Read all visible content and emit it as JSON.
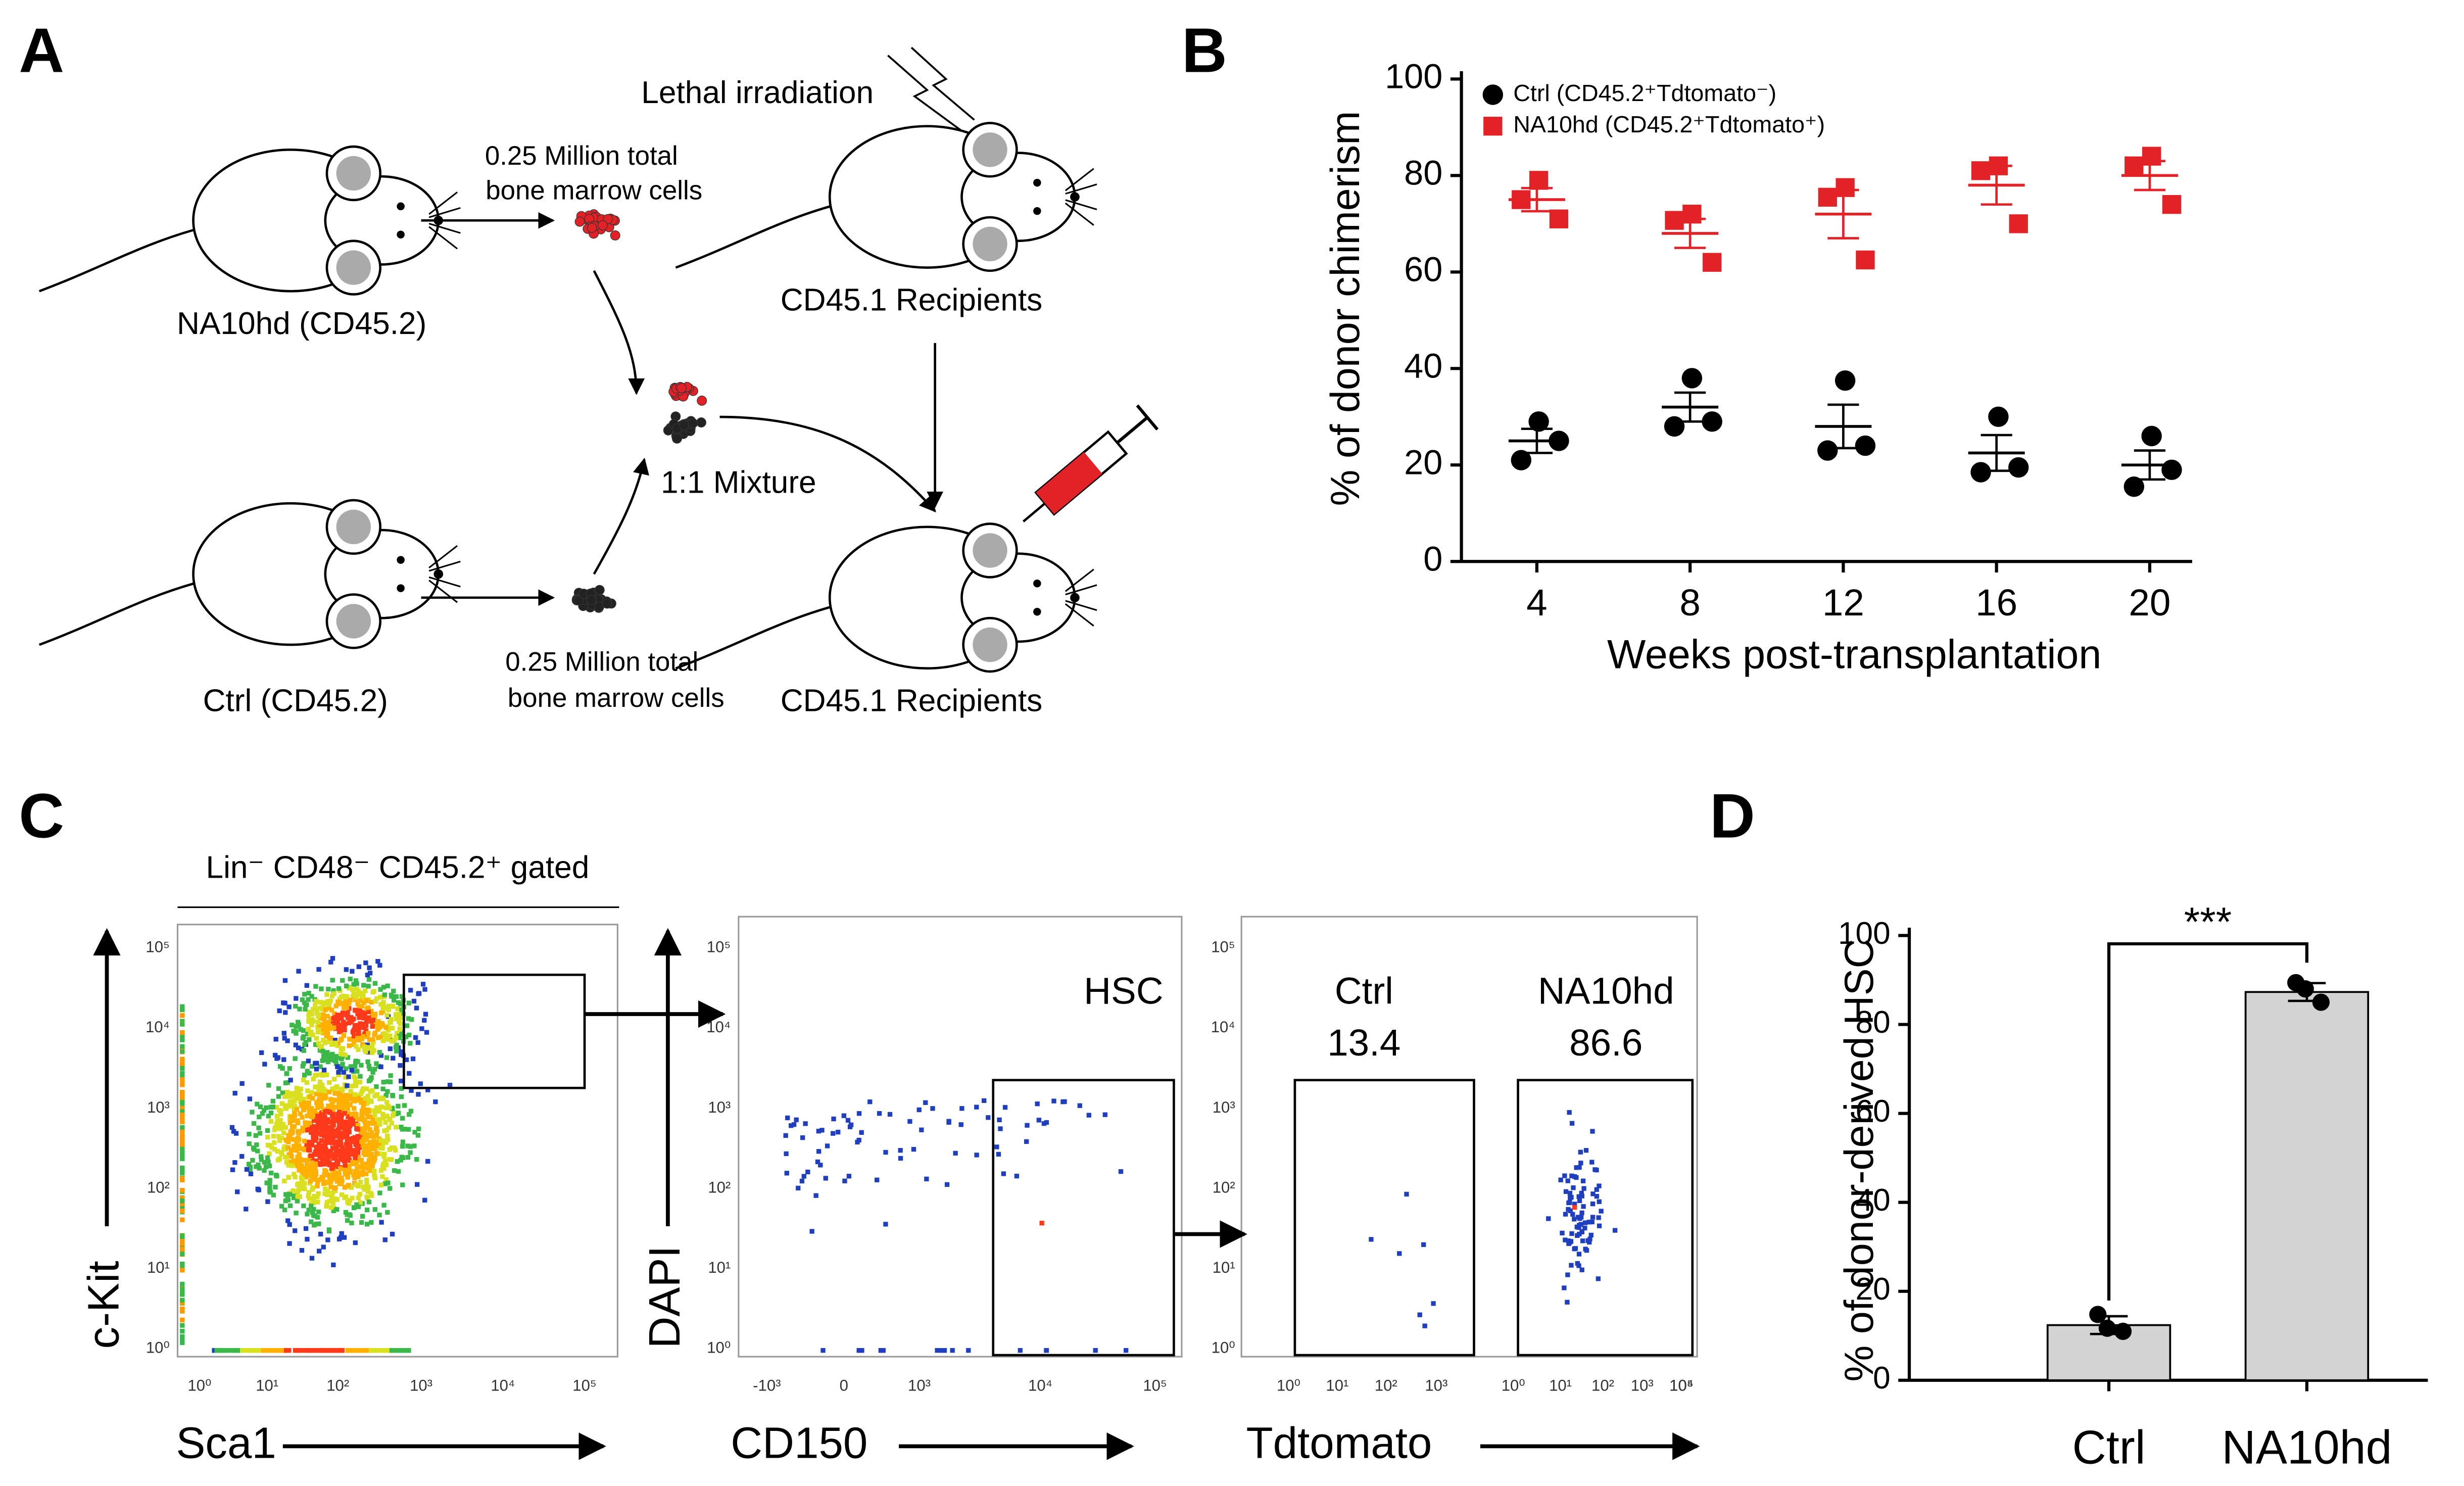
{
  "panel_labels": [
    "A",
    "B",
    "C",
    "D"
  ],
  "diagram": {
    "irradiation": "Lethal irradiation",
    "donor_cells_top": [
      "0.25 Million total",
      "bone marrow cells"
    ],
    "donor_top": "NA10hd (CD45.2)",
    "recipients_top": "CD45.1 Recipients",
    "mixture": "1:1 Mixture",
    "donor_bottom": "Ctrl (CD45.2)",
    "donor_cells_bottom": [
      "0.25 Million total",
      "bone marrow cells"
    ],
    "recipients_bottom": "CD45.1 Recipients"
  },
  "chart_data": [
    {
      "type": "scatter",
      "y_label": "% of donor chimerism",
      "x_label": "Weeks post-transplantation",
      "categories": [
        "4",
        "8",
        "12",
        "16",
        "20"
      ],
      "ylim": [
        0,
        100
      ],
      "yticks": [
        0,
        20,
        40,
        60,
        80,
        100
      ],
      "legend": "top-left",
      "series": [
        {
          "name": "Ctrl (CD45.2⁺Tdtomato⁻)",
          "color": "#000000",
          "marker": "circle",
          "values": [
            25,
            32,
            28,
            22.5,
            20
          ],
          "errors": [
            2.5,
            3,
            4.5,
            3.7,
            3
          ],
          "points": [
            [
              29,
              21,
              25
            ],
            [
              38,
              28,
              29
            ],
            [
              37.5,
              23,
              24
            ],
            [
              30,
              18.5,
              19.5
            ],
            [
              26,
              15.5,
              19
            ]
          ]
        },
        {
          "name": "NA10hd (CD45.2⁺Tdtomato⁺)",
          "color": "#e32227",
          "marker": "square",
          "values": [
            75,
            68,
            72,
            78,
            80
          ],
          "errors": [
            2.4,
            3,
            5,
            4,
            3
          ],
          "points": [
            [
              79,
              75,
              71
            ],
            [
              72,
              70.7,
              62
            ],
            [
              77.5,
              75.5,
              62.5
            ],
            [
              82,
              81,
              70
            ],
            [
              84,
              82,
              74
            ]
          ]
        }
      ]
    },
    {
      "type": "bar",
      "y_label": "% of donor-derived HSC",
      "categories": [
        "Ctrl",
        "NA10hd"
      ],
      "values": [
        12.4,
        87.3
      ],
      "errors": [
        2,
        2
      ],
      "points": [
        [
          14.8,
          11,
          11.7
        ],
        [
          89.4,
          85,
          88
        ]
      ],
      "color": "#d3d3d3",
      "ylim": [
        0,
        100
      ],
      "yticks": [
        0,
        20,
        40,
        60,
        80,
        100
      ],
      "annotation": "***"
    }
  ],
  "flow": {
    "gate_header": "Lin⁻ CD48⁻ CD45.2⁺ gated",
    "plots": [
      {
        "x_label": "Sca1",
        "y_label": "c-Kit",
        "x_ticks": [
          "10⁰",
          "10¹",
          "10²",
          "10³",
          "10⁴",
          "10⁵"
        ],
        "y_ticks": [
          "10⁰",
          "10¹",
          "10²",
          "10³",
          "10⁴",
          "10⁵"
        ]
      },
      {
        "x_label": "CD150",
        "y_label": "DAPI",
        "gate_label": "HSC",
        "x_ticks": [
          "-10³",
          "0",
          "10³",
          "10⁴",
          "10⁵"
        ],
        "y_ticks": [
          "10⁰",
          "10¹",
          "10²",
          "10³",
          "10⁴",
          "10⁵"
        ]
      },
      {
        "x_label": "Tdtomato",
        "x_ticks": [
          "10⁰",
          "10¹",
          "10²",
          "10³",
          "10⁰",
          "10¹",
          "10²",
          "10³",
          "10⁴",
          "10⁵"
        ],
        "y_ticks": [
          "10⁰",
          "10¹",
          "10²",
          "10³",
          "10⁴",
          "10⁵"
        ],
        "gates": [
          {
            "label": "Ctrl",
            "percent": 13.4
          },
          {
            "label": "NA10hd",
            "percent": 86.6
          }
        ]
      }
    ]
  }
}
